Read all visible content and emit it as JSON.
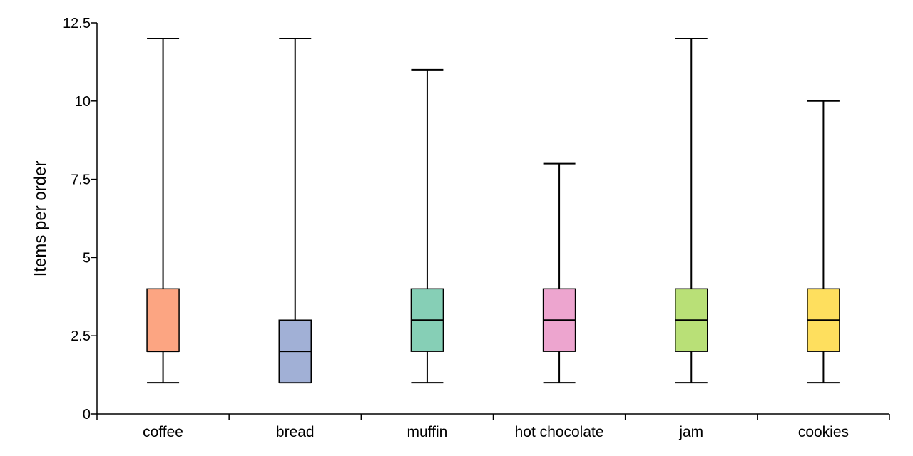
{
  "chart_data": {
    "type": "box",
    "title": "",
    "xlabel": "",
    "ylabel": "Items per order",
    "ylim": [
      0,
      12.5
    ],
    "yticks": [
      0,
      2.5,
      5,
      7.5,
      10,
      12.5
    ],
    "ytick_labels": [
      "0",
      "2.5",
      "5",
      "7.5",
      "10",
      "12.5"
    ],
    "grid": false,
    "legend": "none",
    "categories": [
      "coffee",
      "bread",
      "muffin",
      "hot chocolate",
      "jam",
      "cookies"
    ],
    "series": [
      {
        "category": "coffee",
        "min": 1,
        "q1": 2,
        "median": 2,
        "q3": 4,
        "max": 12,
        "color": "#FCA582"
      },
      {
        "category": "bread",
        "min": 1,
        "q1": 1,
        "median": 2,
        "q3": 3,
        "max": 12,
        "color": "#A1B0D6"
      },
      {
        "category": "muffin",
        "min": 1,
        "q1": 2,
        "median": 3,
        "q3": 4,
        "max": 11,
        "color": "#86CFB6"
      },
      {
        "category": "hot chocolate",
        "min": 1,
        "q1": 2,
        "median": 3,
        "q3": 4,
        "max": 8,
        "color": "#EDA5CF"
      },
      {
        "category": "jam",
        "min": 1,
        "q1": 2,
        "median": 3,
        "q3": 4,
        "max": 12,
        "color": "#B9E077"
      },
      {
        "category": "cookies",
        "min": 1,
        "q1": 2,
        "median": 3,
        "q3": 4,
        "max": 10,
        "color": "#FEDF5E"
      }
    ]
  }
}
